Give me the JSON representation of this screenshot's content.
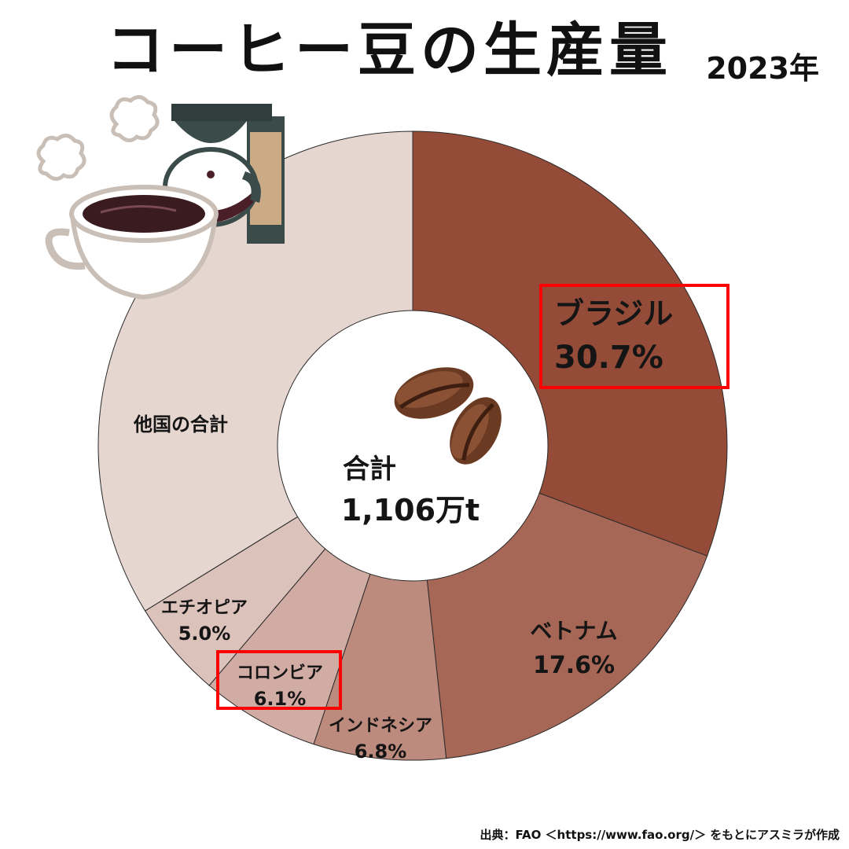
{
  "title": "コーヒー豆の生産量",
  "year": "2023年",
  "source": "出典：FAO ＜https://www.fao.org/＞ をもとにアスミラが作成",
  "colors": {
    "highlight": "#ff0000"
  },
  "icons": [
    "coffee-cup-icon",
    "coffee-maker-icon",
    "coffee-beans-icon"
  ],
  "chart_data": {
    "type": "pie",
    "title": "コーヒー豆の生産量",
    "center_label": "合計",
    "center_value": "1,106万t",
    "slices": [
      {
        "name": "ブラジル",
        "value": 30.7,
        "label": "30.7%",
        "color": "#944c38",
        "highlight": true
      },
      {
        "name": "ベトナム",
        "value": 17.6,
        "label": "17.6%",
        "color": "#a76756",
        "highlight": false
      },
      {
        "name": "インドネシア",
        "value": 6.8,
        "label": "6.8%",
        "color": "#bd8a7e",
        "highlight": false
      },
      {
        "name": "コロンビア",
        "value": 6.1,
        "label": "6.1%",
        "color": "#d0aca4",
        "highlight": true
      },
      {
        "name": "エチオピア",
        "value": 5.0,
        "label": "5.0%",
        "color": "#dbc2bb",
        "highlight": false
      },
      {
        "name": "他国の合計",
        "value": 33.8,
        "label": "",
        "color": "#e6d6d0",
        "highlight": false
      }
    ]
  }
}
